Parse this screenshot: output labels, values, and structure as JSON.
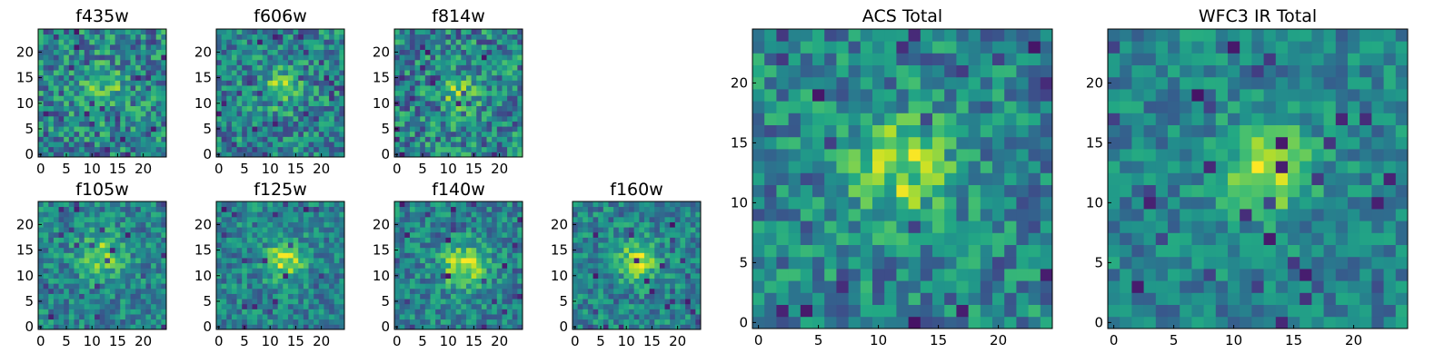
{
  "chart_data": [
    {
      "type": "heatmap",
      "title": "f435w",
      "colormap": "viridis",
      "grid_size": [
        25,
        25
      ],
      "x_ticks": [
        "0",
        "5",
        "10",
        "15",
        "20"
      ],
      "y_ticks": [
        "0",
        "5",
        "10",
        "15",
        "20"
      ],
      "xlim": [
        -0.5,
        24.5
      ],
      "ylim": [
        -0.5,
        24.5
      ],
      "noise": 0.55,
      "blob": 0.25,
      "blob_center": [
        12,
        13
      ],
      "blob_sigma": 3,
      "seed": 11
    },
    {
      "type": "heatmap",
      "title": "f606w",
      "colormap": "viridis",
      "grid_size": [
        25,
        25
      ],
      "x_ticks": [
        "0",
        "5",
        "10",
        "15",
        "20"
      ],
      "y_ticks": [
        "0",
        "5",
        "10",
        "15",
        "20"
      ],
      "xlim": [
        -0.5,
        24.5
      ],
      "ylim": [
        -0.5,
        24.5
      ],
      "noise": 0.5,
      "blob": 0.35,
      "blob_center": [
        12,
        13
      ],
      "blob_sigma": 2.5,
      "seed": 23
    },
    {
      "type": "heatmap",
      "title": "f814w",
      "colormap": "viridis",
      "grid_size": [
        25,
        25
      ],
      "x_ticks": [
        "0",
        "5",
        "10",
        "15",
        "20"
      ],
      "y_ticks": [
        "0",
        "5",
        "10",
        "15",
        "20"
      ],
      "xlim": [
        -0.5,
        24.5
      ],
      "ylim": [
        -0.5,
        24.5
      ],
      "noise": 0.55,
      "blob": 0.3,
      "blob_center": [
        12,
        12
      ],
      "blob_sigma": 2.5,
      "seed": 37
    },
    {
      "type": "heatmap",
      "title": "f105w",
      "colormap": "viridis",
      "grid_size": [
        25,
        25
      ],
      "x_ticks": [
        "0",
        "5",
        "10",
        "15",
        "20"
      ],
      "y_ticks": [
        "0",
        "5",
        "10",
        "15",
        "20"
      ],
      "xlim": [
        -0.5,
        24.5
      ],
      "ylim": [
        -0.5,
        24.5
      ],
      "noise": 0.4,
      "blob": 0.35,
      "blob_center": [
        12,
        14
      ],
      "blob_sigma": 3,
      "seed": 41
    },
    {
      "type": "heatmap",
      "title": "f125w",
      "colormap": "viridis",
      "grid_size": [
        25,
        25
      ],
      "x_ticks": [
        "0",
        "5",
        "10",
        "15",
        "20"
      ],
      "y_ticks": [
        "0",
        "5",
        "10",
        "15",
        "20"
      ],
      "xlim": [
        -0.5,
        24.5
      ],
      "ylim": [
        -0.5,
        24.5
      ],
      "noise": 0.4,
      "blob": 0.45,
      "blob_center": [
        13,
        13
      ],
      "blob_sigma": 2.5,
      "seed": 53
    },
    {
      "type": "heatmap",
      "title": "f140w",
      "colormap": "viridis",
      "grid_size": [
        25,
        25
      ],
      "x_ticks": [
        "0",
        "5",
        "10",
        "15",
        "20"
      ],
      "y_ticks": [
        "0",
        "5",
        "10",
        "15",
        "20"
      ],
      "xlim": [
        -0.5,
        24.5
      ],
      "ylim": [
        -0.5,
        24.5
      ],
      "noise": 0.4,
      "blob": 0.45,
      "blob_center": [
        13,
        12
      ],
      "blob_sigma": 3,
      "seed": 67
    },
    {
      "type": "heatmap",
      "title": "f160w",
      "colormap": "viridis",
      "grid_size": [
        25,
        25
      ],
      "x_ticks": [
        "0",
        "5",
        "10",
        "15",
        "20"
      ],
      "y_ticks": [
        "0",
        "5",
        "10",
        "15",
        "20"
      ],
      "xlim": [
        -0.5,
        24.5
      ],
      "ylim": [
        -0.5,
        24.5
      ],
      "noise": 0.4,
      "blob": 0.45,
      "blob_center": [
        12,
        13
      ],
      "blob_sigma": 2.5,
      "seed": 79
    },
    {
      "type": "heatmap",
      "title": "ACS Total",
      "colormap": "viridis",
      "grid_size": [
        25,
        25
      ],
      "x_ticks": [
        "0",
        "5",
        "10",
        "15",
        "20"
      ],
      "y_ticks": [
        "0",
        "5",
        "10",
        "15",
        "20"
      ],
      "xlim": [
        -0.5,
        24.5
      ],
      "ylim": [
        -0.5,
        24.5
      ],
      "noise": 0.45,
      "blob": 0.4,
      "blob_center": [
        12,
        13
      ],
      "blob_sigma": 3,
      "seed": 97
    },
    {
      "type": "heatmap",
      "title": "WFC3 IR Total",
      "colormap": "viridis",
      "grid_size": [
        25,
        25
      ],
      "x_ticks": [
        "0",
        "5",
        "10",
        "15",
        "20"
      ],
      "y_ticks": [
        "0",
        "5",
        "10",
        "15",
        "20"
      ],
      "xlim": [
        -0.5,
        24.5
      ],
      "ylim": [
        -0.5,
        24.5
      ],
      "noise": 0.35,
      "blob": 0.5,
      "blob_center": [
        13,
        13
      ],
      "blob_sigma": 2.5,
      "seed": 131
    }
  ]
}
